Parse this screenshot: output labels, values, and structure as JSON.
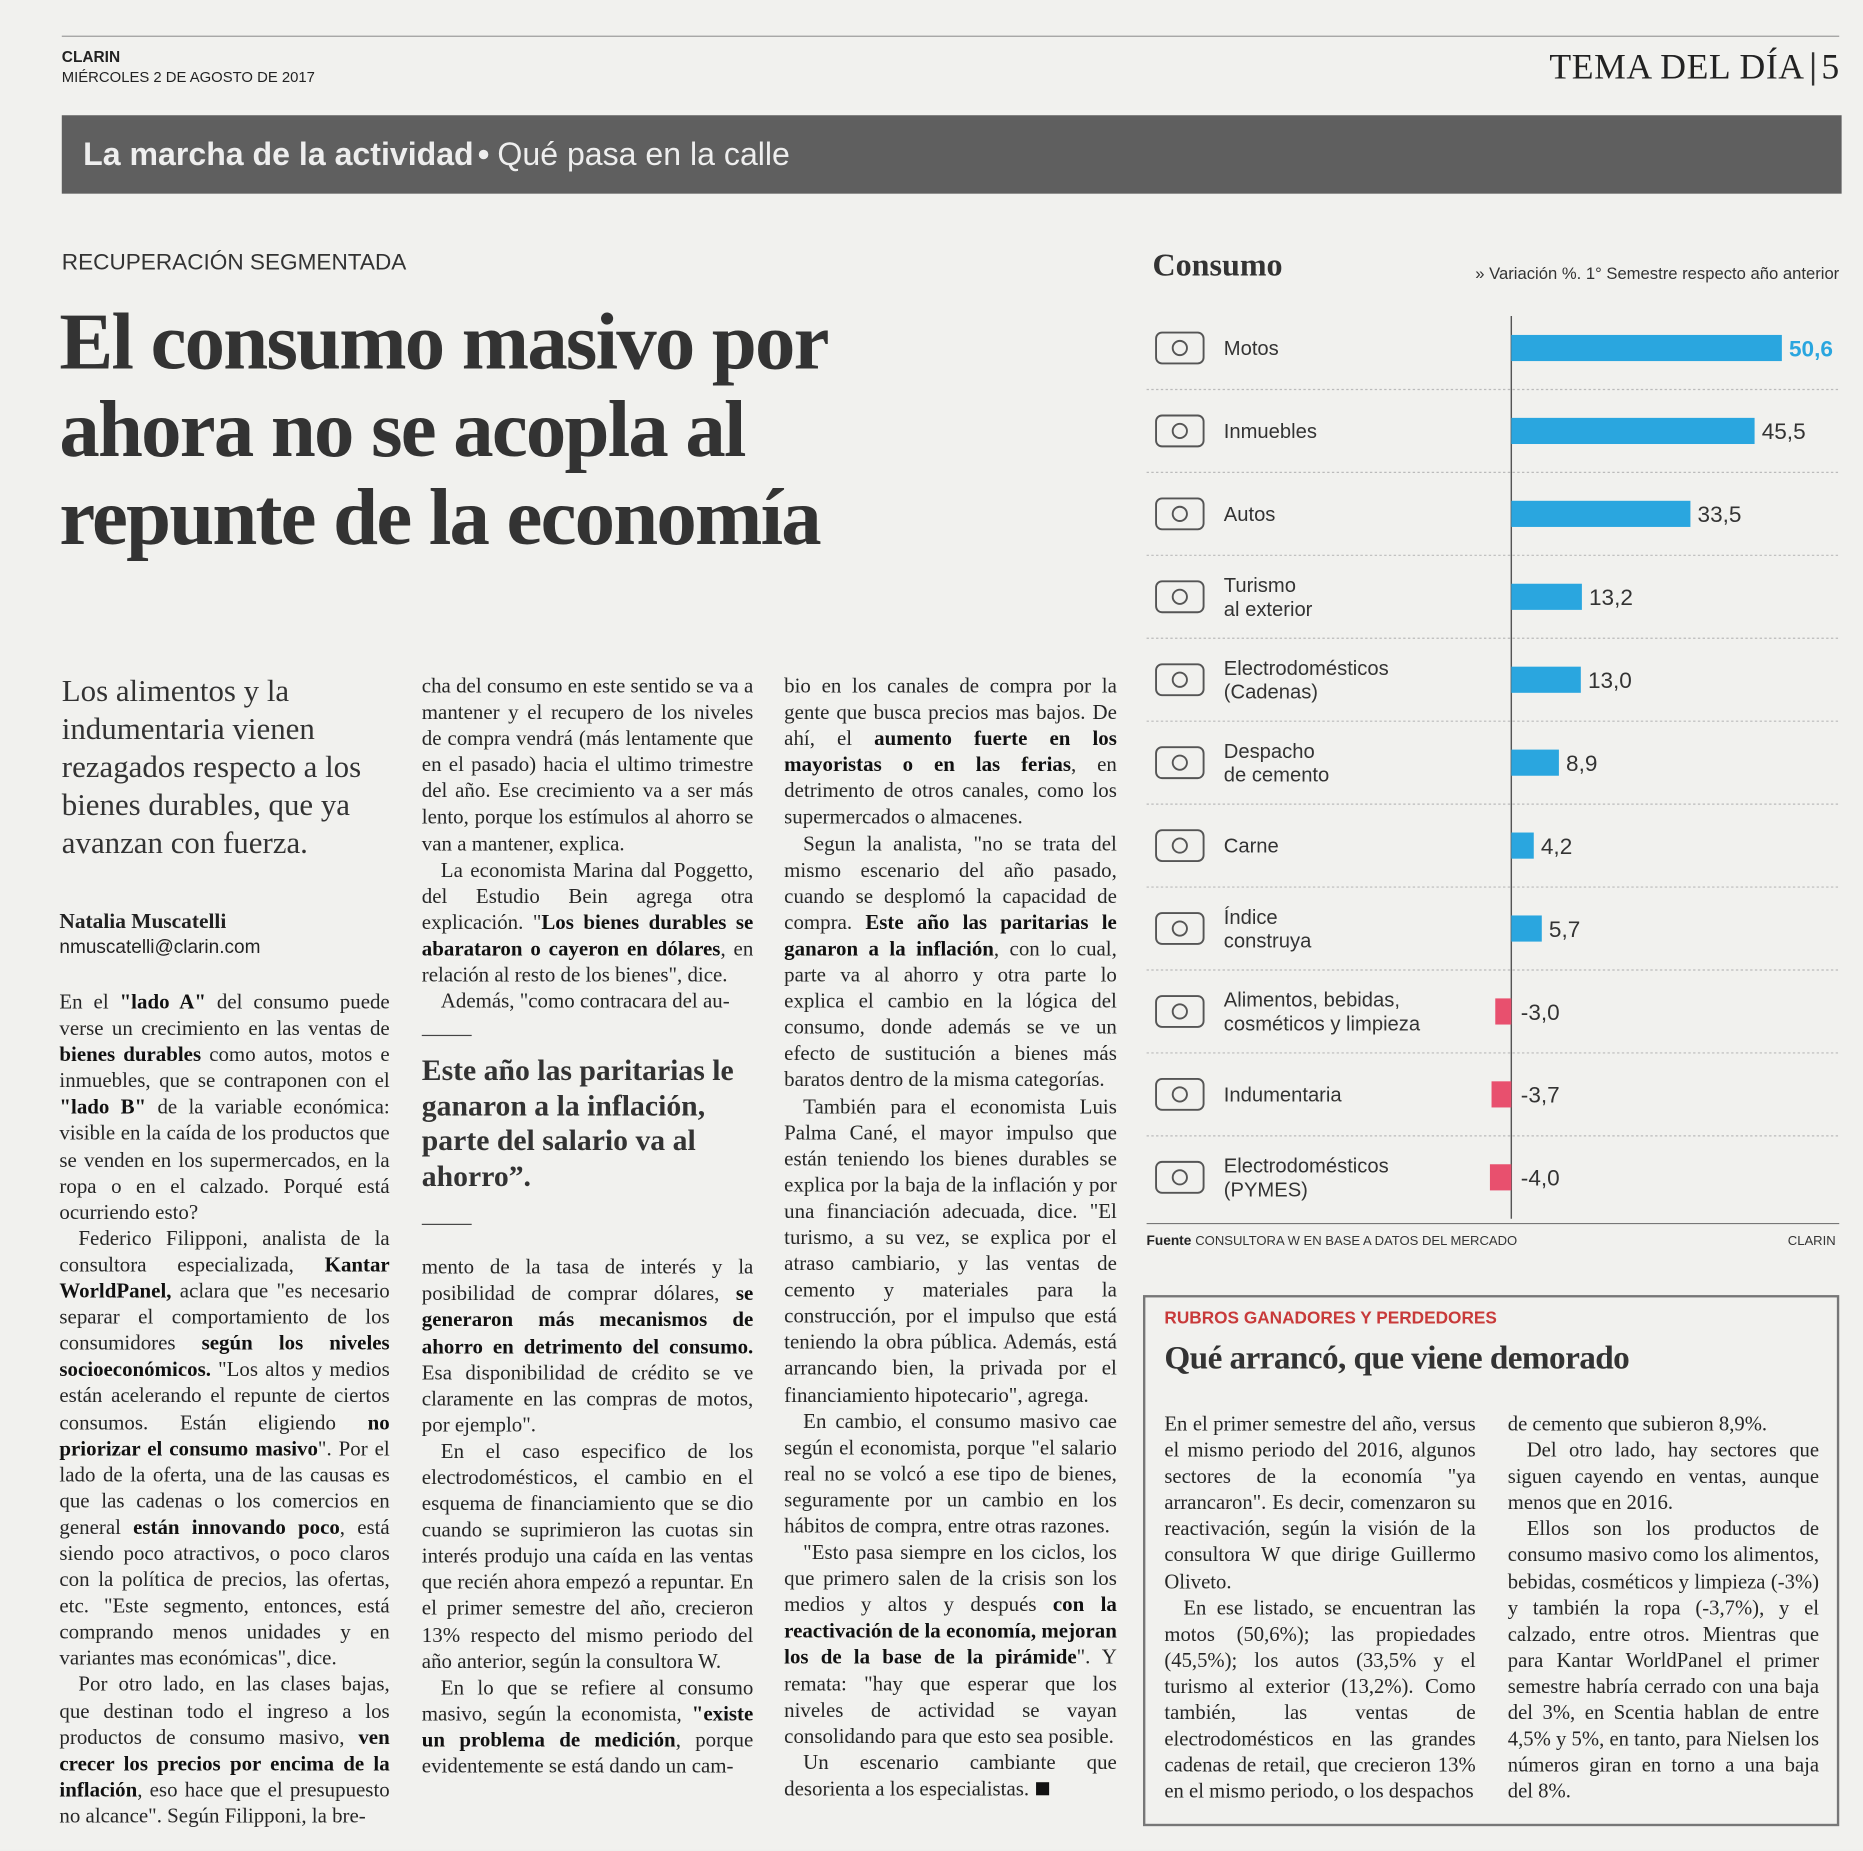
{
  "header": {
    "publication": "CLARIN",
    "date": "MIÉRCOLES 2 DE AGOSTO DE 2017",
    "section": "TEMA DEL DÍA",
    "page": "5"
  },
  "banner": {
    "section": "La marcha de la actividad",
    "topic": "Qué pasa en la calle"
  },
  "article": {
    "kicker": "RECUPERACIÓN SEGMENTADA",
    "headline_lines": [
      "El consumo masivo por",
      "ahora no se acopla al",
      "repunte de la economía"
    ],
    "deck": "Los alimentos y la indumentaria vienen rezagados respecto a los bienes durables, que ya avanzan con fuerza.",
    "author": "Natalia Muscatelli",
    "email": "nmuscatelli@clarin.com",
    "columns": [
      [
        {
          "runs": [
            "En el ",
            {
              "text": "\"lado A\"",
              "bold": true
            },
            " del consumo puede verse un crecimiento en las ventas de ",
            {
              "text": "bienes durables",
              "bold": true
            },
            " como autos, motos e inmuebles, que se contraponen con el ",
            {
              "text": "\"lado B\"",
              "bold": true
            },
            " de la variable económica: visible en la caída de los productos que se venden en los supermercados, en la ropa o en el calzado. Porqué está ocurriendo esto?"
          ]
        },
        {
          "runs": [
            "Federico Filipponi, analista de la consultora especializada, ",
            {
              "text": "Kantar WorldPanel,",
              "bold": true
            },
            " aclara que \"es necesario separar el comportamiento de los consumidores ",
            {
              "text": "según los niveles socioeconómicos.",
              "bold": true
            },
            " \"Los altos y medios están acelerando el repunte de ciertos consumos. Están eligiendo ",
            {
              "text": "no priorizar el consumo masivo",
              "bold": true
            },
            "\". Por el lado de la oferta, una de las causas es que las cadenas o los comercios en general ",
            {
              "text": "están innovando poco",
              "bold": true
            },
            ", está siendo poco atractivos, o poco claros con la política de precios, las ofertas, etc. \"Este segmento, entonces, está comprando menos unidades y en variantes mas económicas\", dice."
          ]
        },
        {
          "runs": [
            "Por otro lado, en las clases bajas, que destinan todo el ingreso a los productos de consumo masivo, ",
            {
              "text": "ven crecer los precios por encima de la inflación",
              "bold": true
            },
            ", eso hace que el presupuesto no alcance\". Según Filipponi, la bre-"
          ]
        }
      ],
      [
        {
          "runs": [
            "cha del consumo en este sentido se va a mantener y el recupero de los niveles de compra vendrá (más lentamente que en el pasado) hacia el ultimo trimestre del año. Ese crecimiento va a ser más lento, porque los estímulos al ahorro se van a mantener, explica."
          ]
        },
        {
          "runs": [
            "La economista Marina dal Poggetto, del Estudio Bein agrega otra explicación. \"",
            {
              "text": "Los bienes durables se abarataron o cayeron en dólares",
              "bold": true
            },
            ", en relación al resto de los bienes\", dice."
          ]
        },
        {
          "runs": [
            "Además, \"como contracara del au-"
          ]
        },
        {
          "quote": "Este año las paritarias le ganaron a la inflación, parte del salario va al ahorro”."
        },
        {
          "runs": [
            "mento de la tasa de interés y la posibilidad de comprar dólares, ",
            {
              "text": "se generaron más mecanismos de ahorro en detrimento del consumo.",
              "bold": true
            },
            " Esa disponibilidad de crédito se ve claramente en las compras de motos, por ejemplo\"."
          ]
        },
        {
          "runs": [
            "En el caso especifico de los electrodomésticos, el cambio en el esquema de financiamiento que se dio cuando se suprimieron las cuotas sin interés produjo una caída en las ventas que recién ahora empezó a repuntar. En el primer semestre del año, crecieron 13% respecto del mismo periodo del año anterior, según la consultora W."
          ]
        },
        {
          "runs": [
            "En lo que se refiere al consumo masivo, según la economista, ",
            {
              "text": "\"existe un problema de medición",
              "bold": true
            },
            ", porque evidentemente se está dando un cam-"
          ]
        }
      ],
      [
        {
          "runs": [
            "bio en los canales de compra por la gente que busca precios mas bajos. De ahí, el ",
            {
              "text": "aumento fuerte en los mayoristas o en las ferias",
              "bold": true
            },
            ", en detrimento de otros canales, como los supermercados o almacenes."
          ]
        },
        {
          "runs": [
            "Segun la analista, \"no se trata del mismo escenario del año pasado, cuando se desplomó la capacidad de compra. ",
            {
              "text": "Este año las paritarias le ganaron a la inflación",
              "bold": true
            },
            ", con lo cual, parte va al ahorro y otra parte lo explica el cambio en la lógica del consumo, donde además se ve un efecto de sustitución a bienes más baratos dentro de la misma categorías."
          ]
        },
        {
          "runs": [
            "También para el economista Luis Palma Cané, el mayor impulso que están teniendo los bienes durables se explica por la baja de la inflación y por una financiación adecuada, dice. \"El turismo, a su vez, se explica por el atraso cambiario, y las ventas de cemento y materiales para la construcción, por el impulso que está teniendo la obra pública. Además, está arrancando bien, la privada por el financiamiento hipotecario\", agrega."
          ]
        },
        {
          "runs": [
            "En cambio, el consumo masivo cae según el economista, porque \"el salario real no se volcó a ese tipo de bienes, seguramente por un cambio en los hábitos de compra, entre otras razones."
          ]
        },
        {
          "runs": [
            "\"Esto pasa siempre en los ciclos, los que primero salen de la crisis son los medios y altos y después ",
            {
              "text": "con la reactivación de la economía, mejoran los de la base de la pirámide",
              "bold": true
            },
            "\". Y remata: \"hay que esperar que los niveles de actividad se vayan consolidando para que esto sea posible."
          ]
        },
        {
          "runs": [
            "Un escenario cambiante que desorienta a los especialistas."
          ]
        }
      ]
    ]
  },
  "chart_data": {
    "type": "bar",
    "orientation": "horizontal",
    "title": "Consumo",
    "subtitle": "» Variación %. 1° Semestre respecto año anterior",
    "categories": [
      "Motos",
      "Inmuebles",
      "Autos",
      "Turismo\nal exterior",
      "Electrodomésticos\n(Cadenas)",
      "Despacho\nde cemento",
      "Carne",
      "Índice\nconstruya",
      "Alimentos, bebidas,\ncosméticos y limpieza",
      "Indumentaria",
      "Electrodomésticos\n(PYMES)"
    ],
    "values": [
      50.6,
      45.5,
      33.5,
      13.2,
      13.0,
      8.9,
      4.2,
      5.7,
      -3.0,
      -3.7,
      -4.0
    ],
    "value_labels": [
      "50,6",
      "45,5",
      "33,5",
      "13,2",
      "13,0",
      "8,9",
      "4,2",
      "5,7",
      "-3,0",
      "-3,7",
      "-4,0"
    ],
    "positive_color": "#2aa6df",
    "negative_color": "#e8506e",
    "highlight_index": 0,
    "xlim": [
      -5,
      55
    ],
    "source_label": "Fuente",
    "source": "CONSULTORA W EN BASE A DATOS DEL MERCADO",
    "credit": "CLARIN"
  },
  "sidebar": {
    "kicker": "RUBROS GANADORES Y PERDEDORES",
    "title": "Qué arrancó, que viene demorado",
    "columns": [
      [
        "En el primer semestre del año, versus el mismo periodo del 2016, algunos sectores de la economía \"ya arrancaron\". Es decir, comenzaron su reactivación, según la visión de la consultora W que dirige Guillermo Oliveto.",
        "En ese listado, se encuentran las motos (50,6%); las propiedades (45,5%); los autos (33,5% y el turismo al exterior (13,2%). Como también, las ventas de electrodomésticos en las grandes cadenas de retail, que crecieron 13% en el mismo periodo, o los despachos"
      ],
      [
        "de cemento que subieron 8,9%.",
        "Del otro lado, hay sectores que siguen cayendo en ventas, aunque menos que en 2016.",
        "Ellos son los productos de consumo masivo como los alimentos, bebidas, cosméticos y limpieza (-3%) y también la ropa (-3,7%), y el calzado, entre otros. Mientras que para Kantar WorldPanel el primer semestre habría cerrado con una baja del 3%, en Scentia hablan de entre 4,5% y 5%, en tanto, para Nielsen los números giran en torno a una baja del 8%."
      ]
    ]
  }
}
